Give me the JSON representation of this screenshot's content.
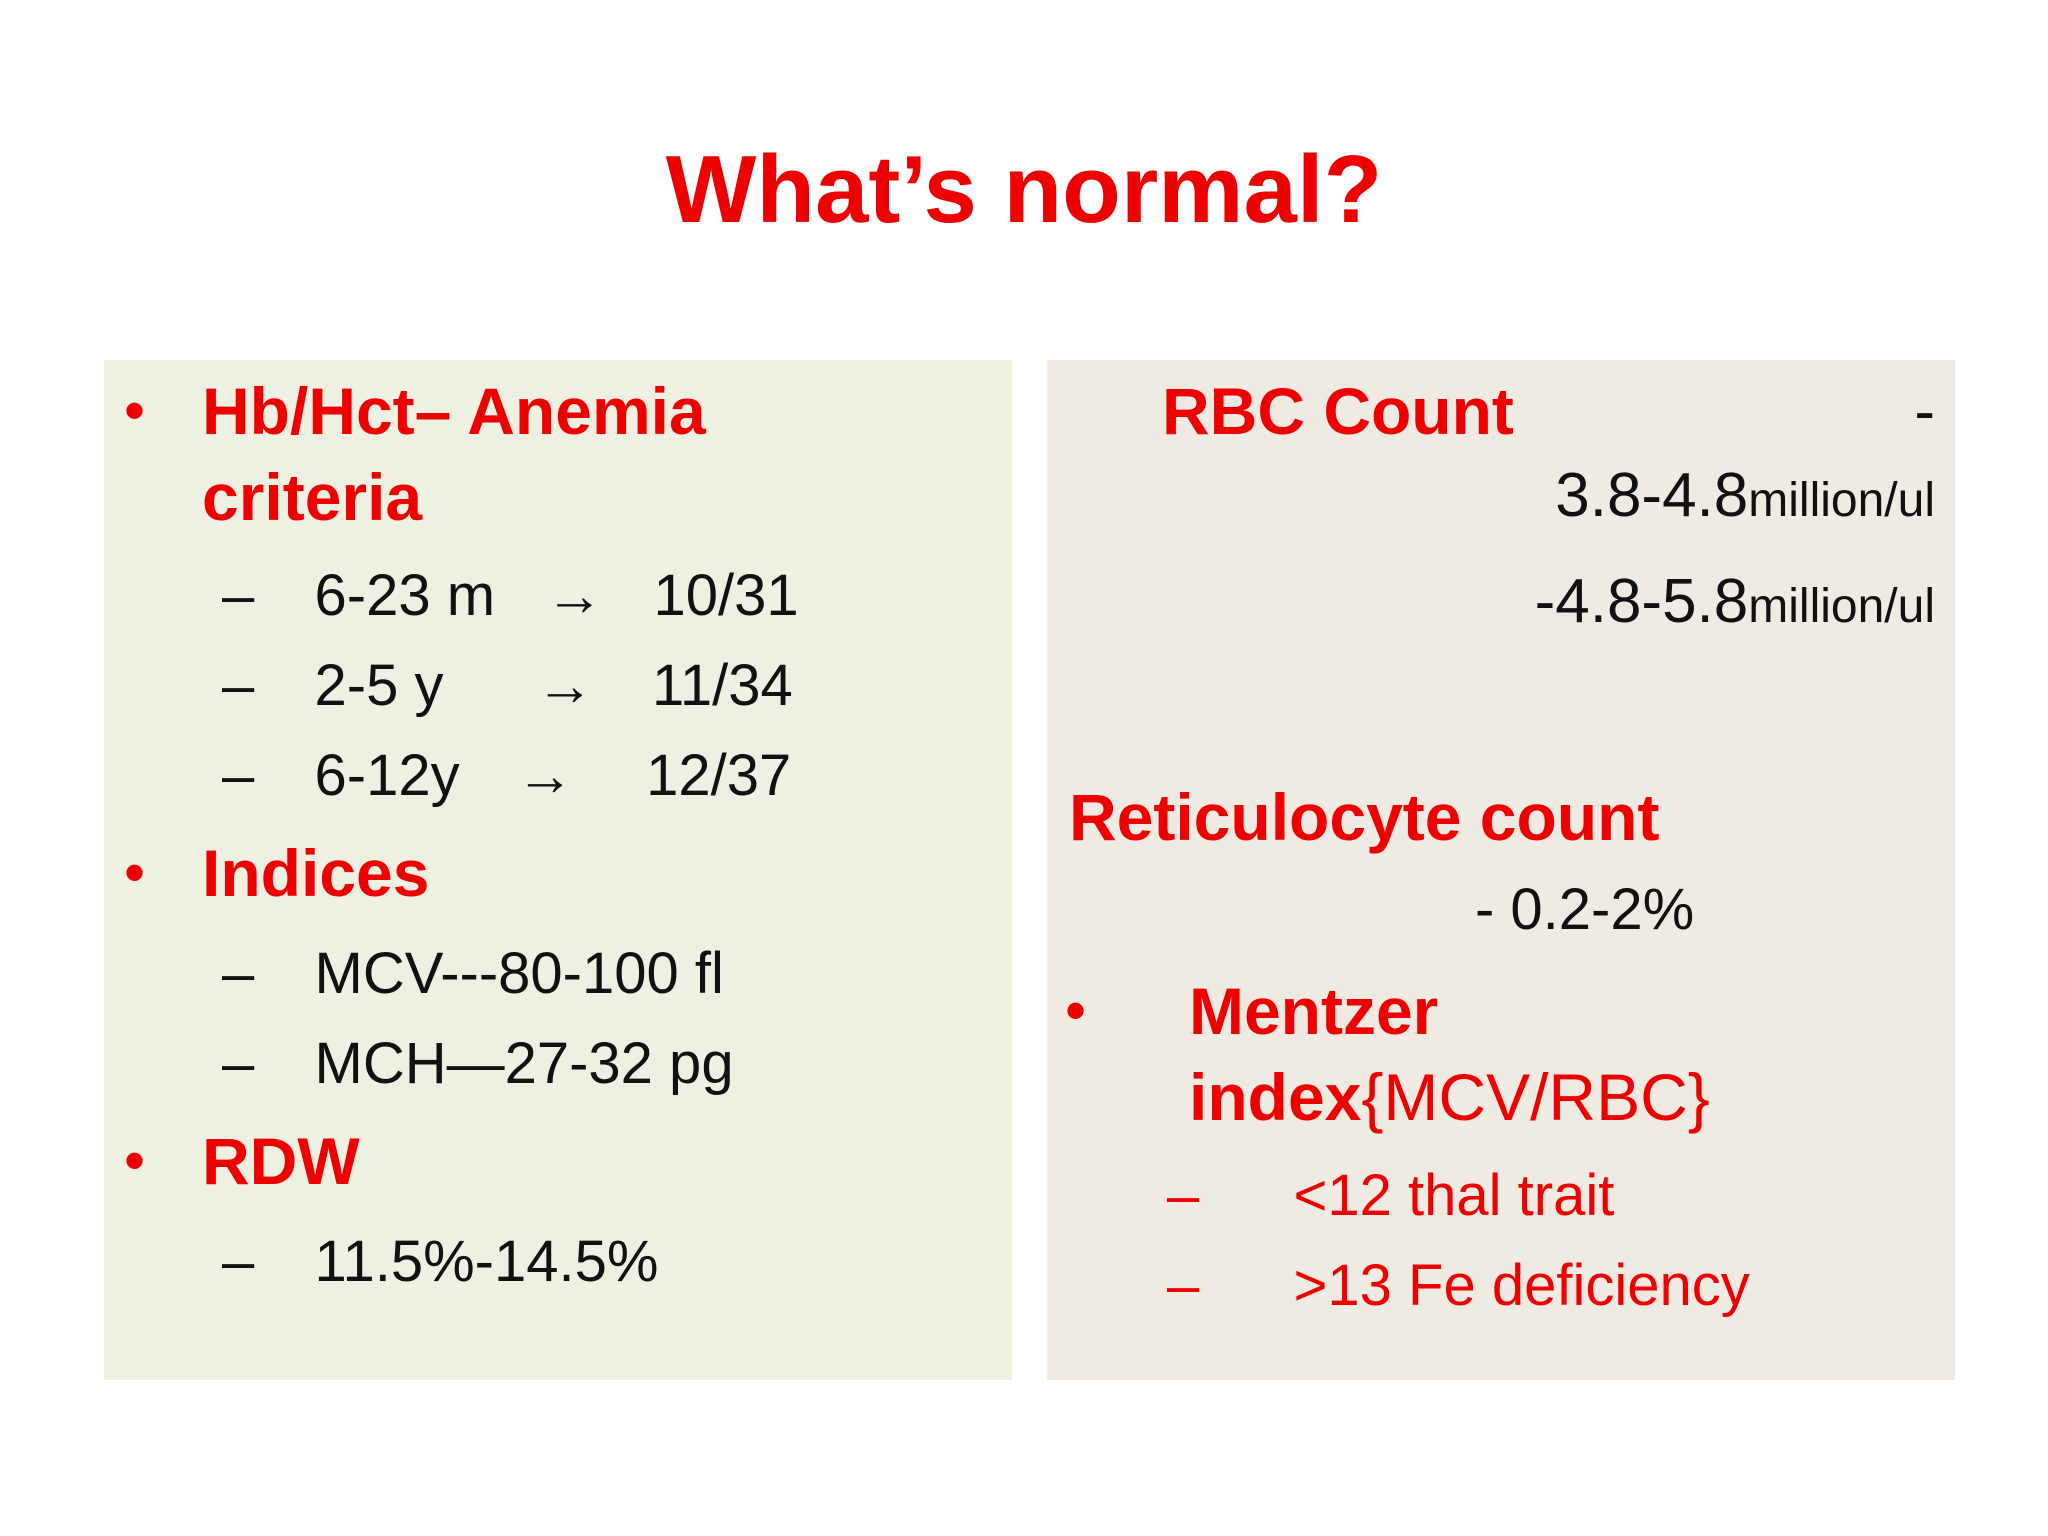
{
  "slide": {
    "title": "What’s normal?"
  },
  "left_panel": {
    "bullets": [
      {
        "marker": "•",
        "heading": "Hb/Hct– Anemia",
        "heading_cont": "criteria",
        "items": [
          {
            "dash": "–",
            "label": "6-23 m",
            "arrow": "→",
            "value": "10/31"
          },
          {
            "dash": "–",
            "label": "2-5 y",
            "arrow": "→",
            "value": "11/34"
          },
          {
            "dash": "–",
            "label": "6-12y",
            "arrow": "→",
            "value": "12/37"
          }
        ]
      },
      {
        "marker": "•",
        "heading": "Indices",
        "items": [
          {
            "dash": "–",
            "text": "MCV---80-100 fl"
          },
          {
            "dash": "–",
            "text": "MCH—27-32 pg"
          }
        ]
      },
      {
        "marker": "•",
        "heading": "RDW",
        "items": [
          {
            "dash": "–",
            "text": "11.5%-14.5%"
          }
        ]
      }
    ]
  },
  "right_panel": {
    "rbc": {
      "heading": "RBC Count",
      "trailing_dash": "-",
      "line1_value": "3.8-4.8",
      "line1_unit": "million/ul",
      "line2_value": "-4.8-5.8",
      "line2_unit": "million/ul"
    },
    "retic": {
      "heading": "Reticulocyte count",
      "value": "- 0.2-2%"
    },
    "mentzer": {
      "marker": "•",
      "heading": "Mentzer",
      "heading2_bold": "index",
      "heading2_rest": "{MCV/RBC}",
      "items": [
        {
          "dash": "–",
          "text": "<12 thal trait"
        },
        {
          "dash": "–",
          "text": ">13 Fe deficiency"
        }
      ]
    }
  }
}
